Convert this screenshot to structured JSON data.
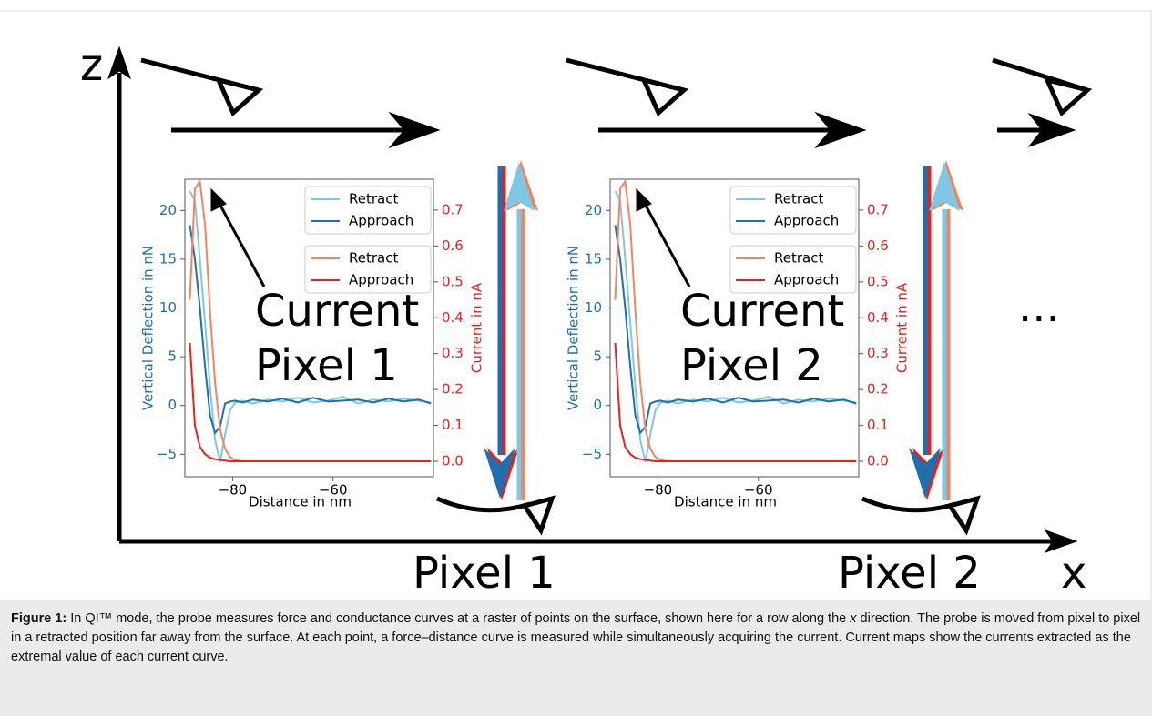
{
  "chart_data": [
    {
      "type": "line",
      "xlabel": "Distance in nm",
      "ylabel": "Vertical Deflection in nN",
      "y2label": "Current in nA",
      "x": [
        -88.5,
        -87.5,
        -86.5,
        -85.5,
        -84.5,
        -83.5,
        -82.5,
        -81.5,
        -80.5,
        -79.5,
        -78,
        -76,
        -73,
        -70,
        -67,
        -64,
        -61,
        -58,
        -55,
        -52,
        -49,
        -46,
        -43,
        -40.5
      ],
      "series": [
        {
          "name": "Retract",
          "color": "#7ec8e3",
          "values": [
            22,
            21,
            15,
            8.5,
            2,
            -3.5,
            -5.8,
            -3,
            -0.5,
            0.3,
            0.5,
            0.2,
            0.6,
            0.4,
            0.8,
            0.3,
            0.5,
            0.9,
            0.2,
            0.6,
            0.4,
            0.7,
            0.5,
            0.3
          ]
        },
        {
          "name": "Approach",
          "color": "#1f6fad",
          "values": [
            18.5,
            15,
            10,
            4,
            -1,
            -2.8,
            -2.2,
            0.2,
            0.4,
            0.5,
            0.3,
            0.6,
            0.4,
            0.7,
            0.3,
            0.8,
            0.4,
            0.5,
            0.6,
            0.3,
            0.7,
            0.4,
            0.6,
            0.2
          ]
        },
        {
          "name": "Retract",
          "color": "#f4845f",
          "axis": "y2",
          "values": [
            0.45,
            0.76,
            0.78,
            0.66,
            0.42,
            0.22,
            0.09,
            0.035,
            0.012,
            0.004,
            0,
            0,
            0,
            0,
            0,
            0,
            0,
            0,
            0,
            0,
            0,
            0,
            0,
            0
          ]
        },
        {
          "name": "Approach",
          "color": "#e8201e",
          "axis": "y2",
          "values": [
            0.33,
            0.1,
            0.04,
            0.02,
            0.01,
            0.006,
            0.004,
            0.002,
            0,
            0,
            0,
            0,
            0,
            0,
            0,
            0,
            0,
            0,
            0,
            0,
            0,
            0,
            0,
            0
          ]
        }
      ],
      "xlim": [
        -89.5,
        -40
      ],
      "xticks": [
        {
          "value": -80,
          "label": "−80"
        },
        {
          "value": -60,
          "label": "−60"
        }
      ],
      "ylim": [
        -7.3,
        23.2
      ],
      "yticks": [
        {
          "value": -5,
          "label": "−5"
        },
        0,
        5,
        10,
        15,
        20
      ],
      "y2lim": [
        -0.043,
        0.786
      ],
      "y2ticks": [
        {
          "value": 0,
          "label": "0.0"
        },
        0.1,
        0.2,
        0.3,
        0.4,
        0.5,
        0.6,
        0.7
      ]
    },
    {
      "type": "line",
      "xlabel": "Distance in nm",
      "ylabel": "Vertical Deflection in nN",
      "y2label": "Current in nA",
      "x": [
        -88.5,
        -87.5,
        -86.5,
        -85.5,
        -84.5,
        -83.5,
        -82.5,
        -81.5,
        -80.5,
        -79.5,
        -78,
        -76,
        -73,
        -70,
        -67,
        -64,
        -61,
        -58,
        -55,
        -52,
        -49,
        -46,
        -43,
        -40.5
      ],
      "series": [
        {
          "name": "Retract",
          "color": "#7ec8e3",
          "values": [
            22,
            21,
            15,
            8.5,
            2,
            -3.5,
            -5.8,
            -3,
            -0.5,
            0.3,
            0.5,
            0.2,
            0.6,
            0.4,
            0.8,
            0.3,
            0.5,
            0.9,
            0.2,
            0.6,
            0.4,
            0.7,
            0.5,
            0.3
          ]
        },
        {
          "name": "Approach",
          "color": "#1f6fad",
          "values": [
            18.5,
            15,
            10,
            4,
            -1,
            -2.8,
            -2.2,
            0.2,
            0.4,
            0.5,
            0.3,
            0.6,
            0.4,
            0.7,
            0.3,
            0.8,
            0.4,
            0.5,
            0.6,
            0.3,
            0.7,
            0.4,
            0.6,
            0.2
          ]
        },
        {
          "name": "Retract",
          "color": "#f4845f",
          "axis": "y2",
          "values": [
            0.45,
            0.76,
            0.78,
            0.66,
            0.42,
            0.22,
            0.09,
            0.035,
            0.012,
            0.004,
            0,
            0,
            0,
            0,
            0,
            0,
            0,
            0,
            0,
            0,
            0,
            0,
            0,
            0
          ]
        },
        {
          "name": "Approach",
          "color": "#e8201e",
          "axis": "y2",
          "values": [
            0.33,
            0.1,
            0.04,
            0.02,
            0.01,
            0.006,
            0.004,
            0.002,
            0,
            0,
            0,
            0,
            0,
            0,
            0,
            0,
            0,
            0,
            0,
            0,
            0,
            0,
            0,
            0
          ]
        }
      ],
      "xlim": [
        -89.5,
        -40
      ],
      "xticks": [
        {
          "value": -80,
          "label": "−80"
        },
        {
          "value": -60,
          "label": "−60"
        }
      ],
      "ylim": [
        -7.3,
        23.2
      ],
      "yticks": [
        {
          "value": -5,
          "label": "−5"
        },
        0,
        5,
        10,
        15,
        20
      ],
      "y2lim": [
        -0.043,
        0.786
      ],
      "y2ticks": [
        {
          "value": 0,
          "label": "0.0"
        },
        0.1,
        0.2,
        0.3,
        0.4,
        0.5,
        0.6,
        0.7
      ]
    }
  ],
  "diagram": {
    "axis_z": "z",
    "axis_x": "x",
    "pixel_labels": [
      "Pixel 1",
      "Pixel 2"
    ],
    "current_labels": [
      [
        "Current",
        "Pixel 1"
      ],
      [
        "Current",
        "Pixel 2"
      ]
    ],
    "continuation": "..."
  },
  "caption": {
    "label": "Figure 1:",
    "text_1": "In QI™ mode, the probe measures force and conductance curves at a raster of points on the surface, shown here for a row along the",
    "emphasis": "x",
    "text_2": "direction. The probe is moved from pixel to pixel in a retracted position far away from the surface. At each point, a force–distance curve is measured while simultaneously acquiring the current. Current maps show the currents extracted as the extremal value of each current curve."
  }
}
